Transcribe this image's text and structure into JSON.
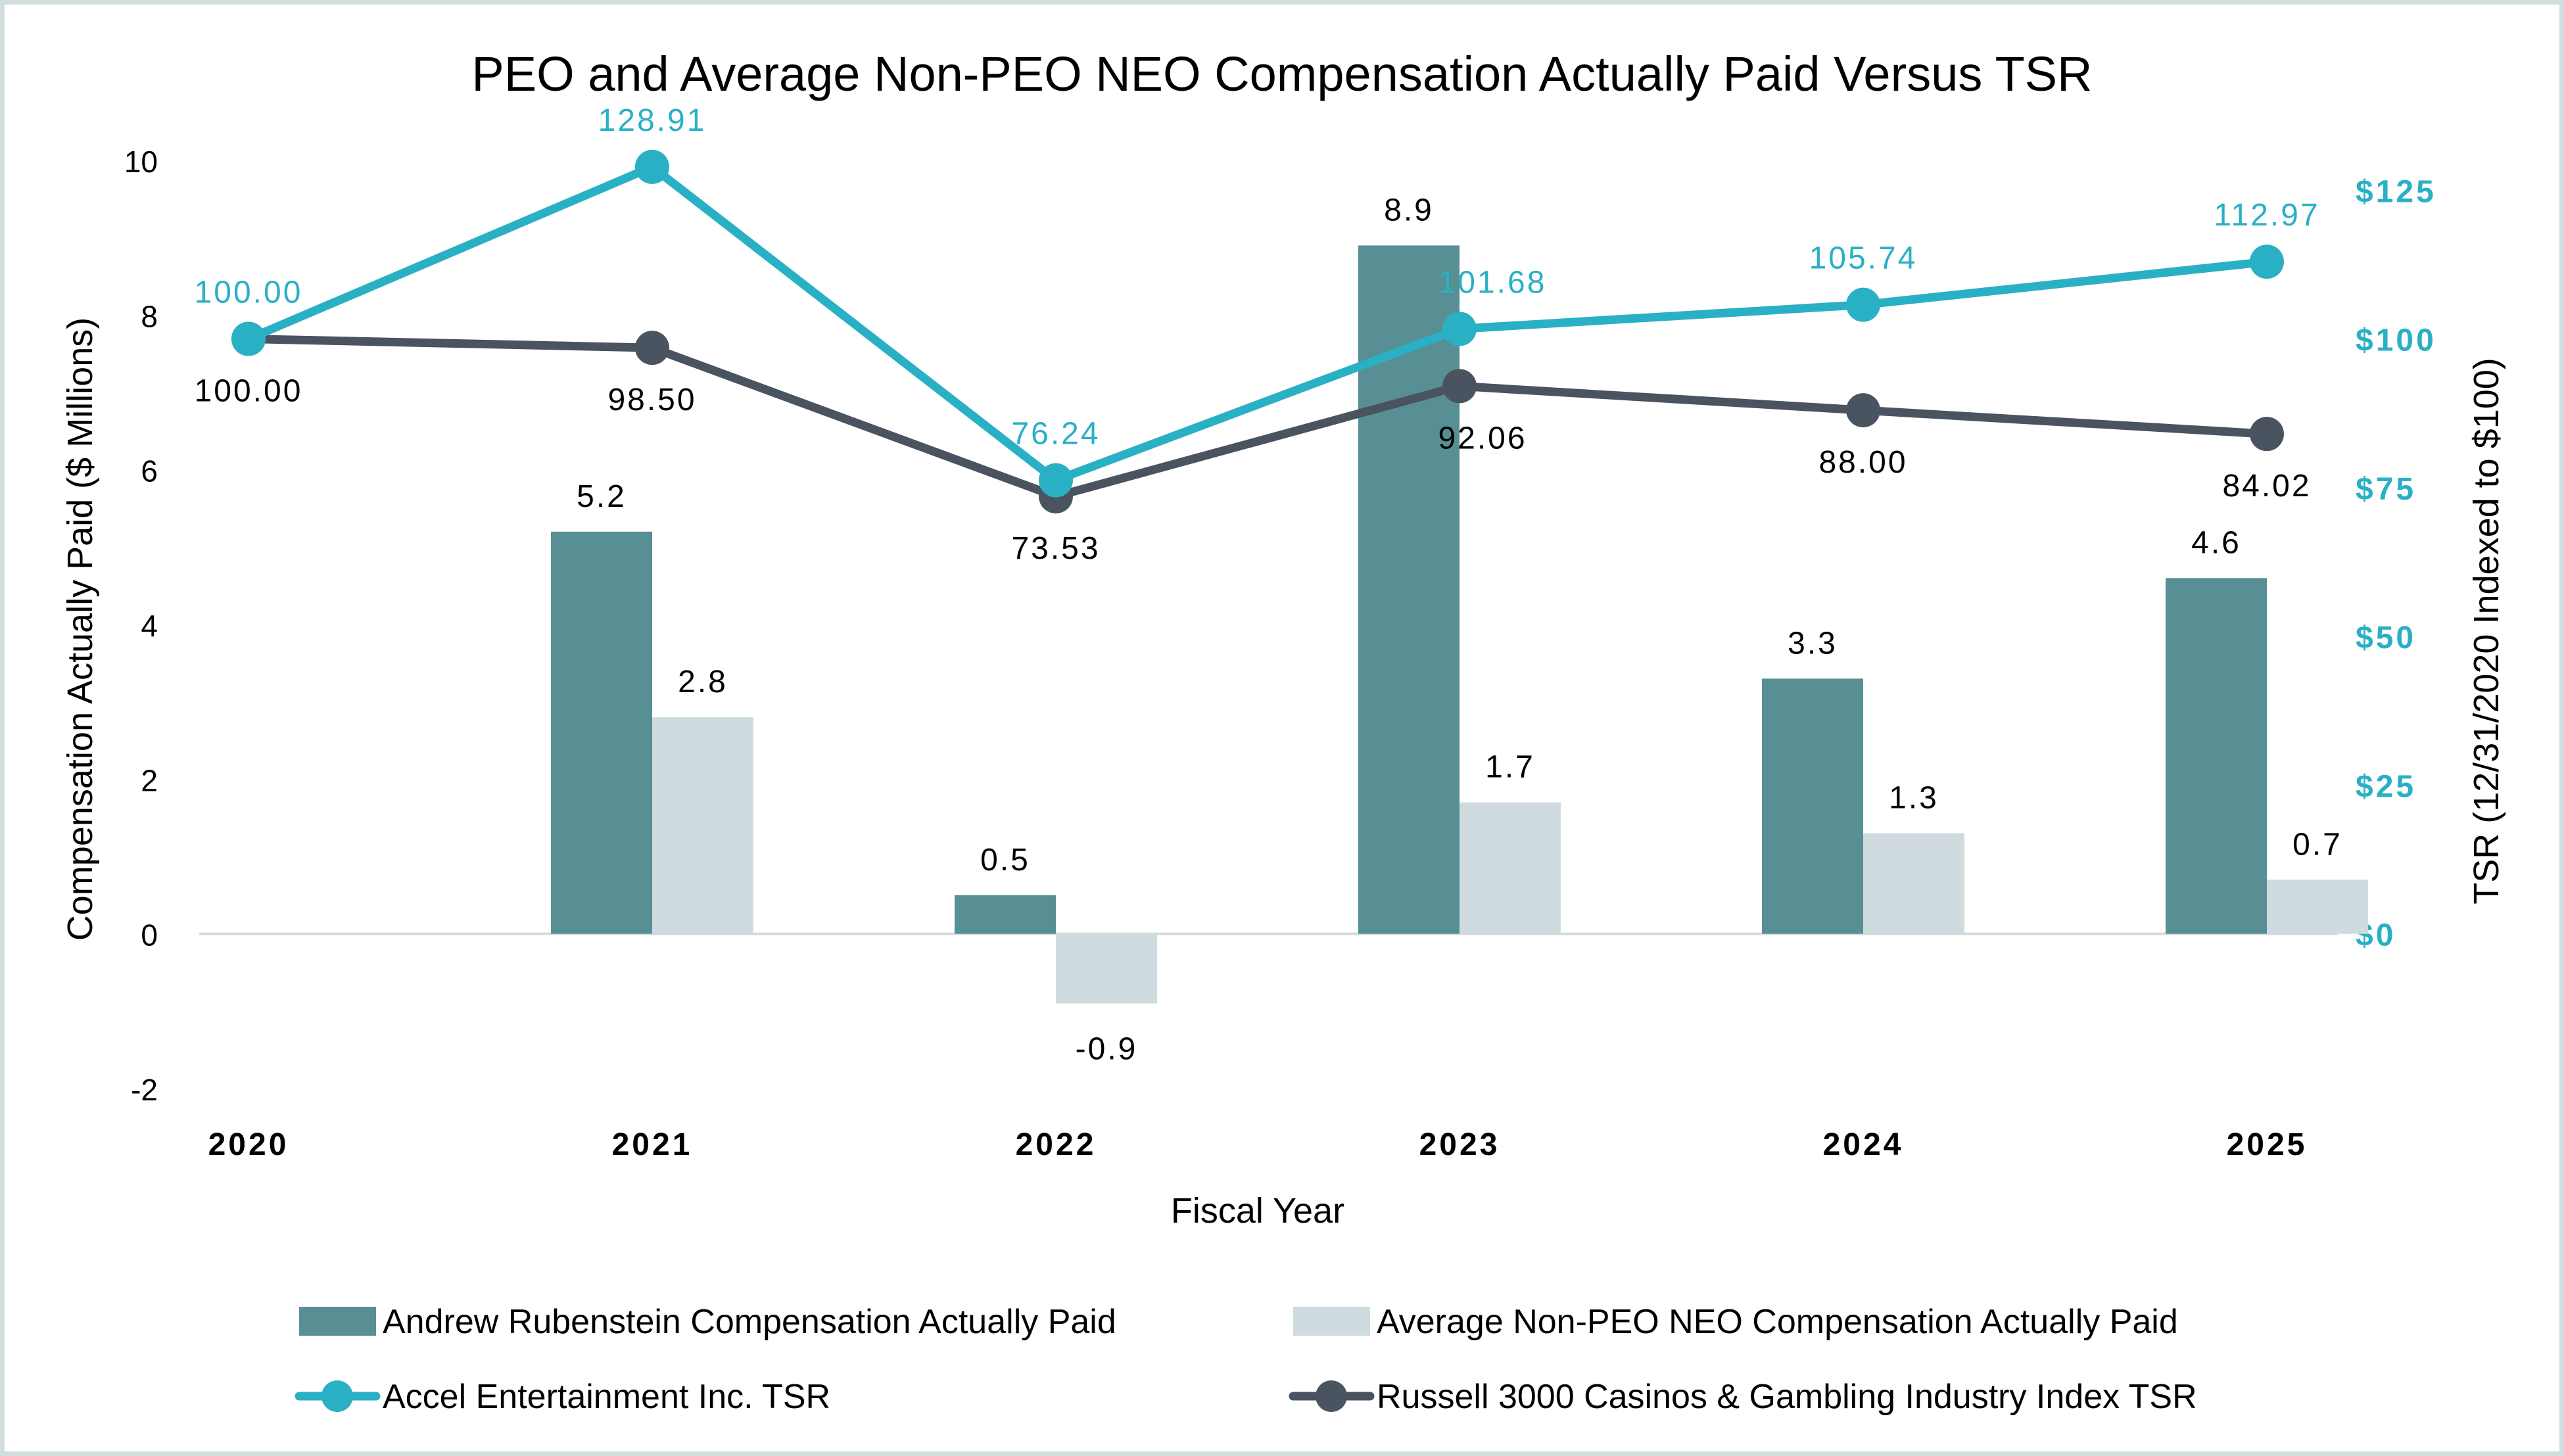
{
  "chart_data": {
    "type": "bar+line",
    "title": "PEO and Average Non-PEO NEO Compensation Actually Paid Versus TSR",
    "xlabel": "Fiscal Year",
    "ylabel": "Compensation Actually Paid ($ Millions)",
    "y2label": "TSR (12/31/2020 Indexed to $100)",
    "categories": [
      "2020",
      "2021",
      "2022",
      "2023",
      "2024",
      "2025"
    ],
    "ylim": [
      -2,
      10
    ],
    "yticks": [
      "10",
      "8",
      "6",
      "4",
      "2",
      "0",
      "-2"
    ],
    "y2ticks": [
      "$125",
      "$100",
      "$75",
      "$50",
      "$25",
      "$0"
    ],
    "bar_series": [
      {
        "name": "Andrew Rubenstein Compensation Actually Paid",
        "color": "#578f94",
        "values": [
          null,
          5.2,
          0.5,
          8.9,
          3.3,
          4.6
        ],
        "labels": [
          "",
          "5.2",
          "0.5",
          "8.9",
          "3.3",
          "4.6"
        ]
      },
      {
        "name": "Average Non-PEO NEO Compensation Actually Paid",
        "color": "#cfdbde",
        "values": [
          null,
          2.8,
          -0.9,
          1.7,
          1.3,
          0.7
        ],
        "labels": [
          "",
          "2.8",
          "-0.9",
          "1.7",
          "1.3",
          "0.7"
        ]
      }
    ],
    "line_series": [
      {
        "name": "Accel Entertainment Inc. TSR",
        "color": "#2ab0c5",
        "label_color": "#2ab0c5",
        "values": [
          100.0,
          128.91,
          76.24,
          101.68,
          105.74,
          112.97
        ],
        "labels": [
          "100.00",
          "128.91",
          "76.24",
          "101.68",
          "105.74",
          "112.97"
        ]
      },
      {
        "name": "Russell 3000 Casinos & Gambling Industry Index TSR",
        "color": "#4a5360",
        "label_color": "#000000",
        "values": [
          100.0,
          98.5,
          73.53,
          92.06,
          88.0,
          84.02
        ],
        "labels": [
          "100.00",
          "98.50",
          "73.53",
          "92.06",
          "88.00",
          "84.02"
        ]
      }
    ],
    "y2lim": [
      -26,
      130
    ],
    "grid": "zero-line only",
    "legend": "bottom"
  }
}
